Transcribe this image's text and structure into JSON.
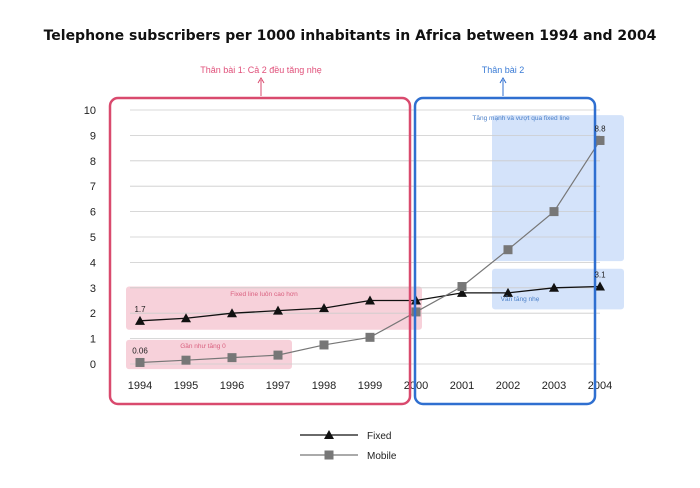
{
  "chart_data": {
    "type": "line",
    "title": "Telephone subscribers per 1000 inhabitants in Africa between 1994 and 2004",
    "categories": [
      "1994",
      "1995",
      "1996",
      "1997",
      "1998",
      "1999",
      "2000",
      "2001",
      "2002",
      "2003",
      "2004"
    ],
    "ylim": [
      0,
      10
    ],
    "yticks": [
      "0",
      "1",
      "2",
      "3",
      "4",
      "5",
      "6",
      "7",
      "8",
      "9",
      "10"
    ],
    "grid": true,
    "legend_position": "bottom",
    "series": [
      {
        "name": "Fixed",
        "marker": "triangle",
        "color": "#111111",
        "values": [
          1.7,
          1.8,
          2.0,
          2.1,
          2.2,
          2.5,
          2.5,
          2.8,
          2.8,
          3.0,
          3.05
        ]
      },
      {
        "name": "Mobile",
        "marker": "square",
        "color": "#777777",
        "values": [
          0.06,
          0.15,
          0.25,
          0.35,
          0.75,
          1.05,
          2.05,
          3.05,
          4.5,
          6.0,
          8.8
        ]
      }
    ],
    "data_labels": [
      {
        "text": "1.7",
        "series": "Fixed",
        "index": 0
      },
      {
        "text": "0.06",
        "series": "Mobile",
        "index": 0
      },
      {
        "text": "3.1",
        "series": "Fixed",
        "index": 10
      },
      {
        "text": "8.8",
        "series": "Mobile",
        "index": 10
      }
    ],
    "annotations": {
      "section1_label": "Thân bài 1: Cả 2 đều tăng nhẹ",
      "section2_label": "Thân bài 2",
      "fixed_note": "Fixed line luôn cao hơn",
      "mobile_note": "Gần như tăng 0",
      "rise_note": "Tăng mạnh và vượt qua fixed line",
      "fixed_rise_note": "Vẫn tăng nhẹ"
    },
    "colors": {
      "section1": "#d94a6e",
      "section2": "#2f6fd0",
      "pink_fill": "#f6c9d3",
      "blue_fill": "#cfe0fa",
      "grid": "#cccccc"
    }
  }
}
